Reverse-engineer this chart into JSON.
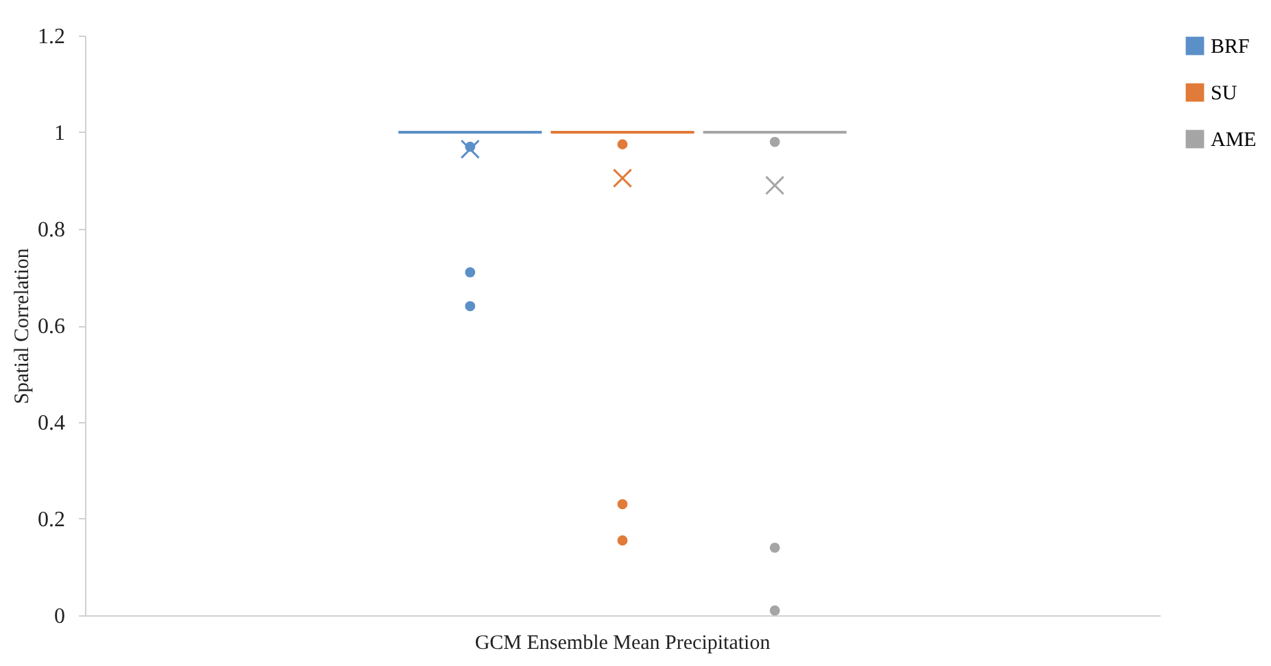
{
  "chart_data": {
    "type": "box",
    "xlabel": null,
    "ylabel": "Spatial Correlation",
    "categories": [
      "GCM Ensemble Mean Precipitation"
    ],
    "ylim": [
      0,
      1.2
    ],
    "yticks": [
      0,
      0.2,
      0.4,
      0.6,
      0.8,
      1,
      1.2
    ],
    "grid": false,
    "legend": "right",
    "series": [
      {
        "name": "BRF",
        "color": "#5b8fc7",
        "boxes": [
          {
            "low": 1,
            "q1": 1,
            "median": 1,
            "q3": 1,
            "high": 1,
            "mean": 0.965,
            "outliers": [
              0.97,
              0.71,
              0.64
            ]
          }
        ]
      },
      {
        "name": "SU",
        "color": "#e07b39",
        "boxes": [
          {
            "low": 1,
            "q1": 1,
            "median": 1,
            "q3": 1,
            "high": 1,
            "mean": 0.905,
            "outliers": [
              0.975,
              0.23,
              0.155
            ]
          }
        ]
      },
      {
        "name": "AME",
        "color": "#a5a5a5",
        "boxes": [
          {
            "low": 1,
            "q1": 1,
            "median": 1,
            "q3": 1,
            "high": 1,
            "mean": 0.89,
            "outliers": [
              0.98,
              0.14,
              0.01
            ]
          }
        ]
      }
    ]
  }
}
